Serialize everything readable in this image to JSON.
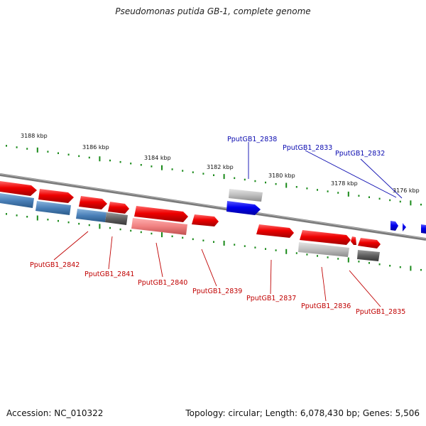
{
  "title": "Pseudomonas putida GB-1, complete genome",
  "footer": {
    "accession": "Accession: NC_010322",
    "summary": "Topology: circular; Length: 6,078,430 bp; Genes: 5,506"
  },
  "colors": {
    "forward_gene": "#e80000",
    "reverse_gene": "#0000e0",
    "pseudo_light": "#bcbcbc",
    "pseudo_dark": "#606060",
    "blue_grey": "#4a80b8",
    "light_red": "#f08080",
    "tick": "#1a8a1a",
    "backbone": "#808080",
    "label_blue": "#0a0ab0",
    "label_red": "#c00000"
  },
  "scale_labels": [
    "3188 kbp",
    "3186 kbp",
    "3184 kbp",
    "3182 kbp",
    "3180 kbp",
    "3178 kbp",
    "3176 kbp"
  ],
  "gene_labels_top": [
    "PputGB1_2838",
    "PputGB1_2833",
    "PputGB1_2832"
  ],
  "gene_labels_bottom": [
    "PputGB1_2842",
    "PputGB1_2841",
    "PputGB1_2840",
    "PputGB1_2839",
    "PputGB1_2837",
    "PputGB1_2836",
    "PputGB1_2835"
  ]
}
